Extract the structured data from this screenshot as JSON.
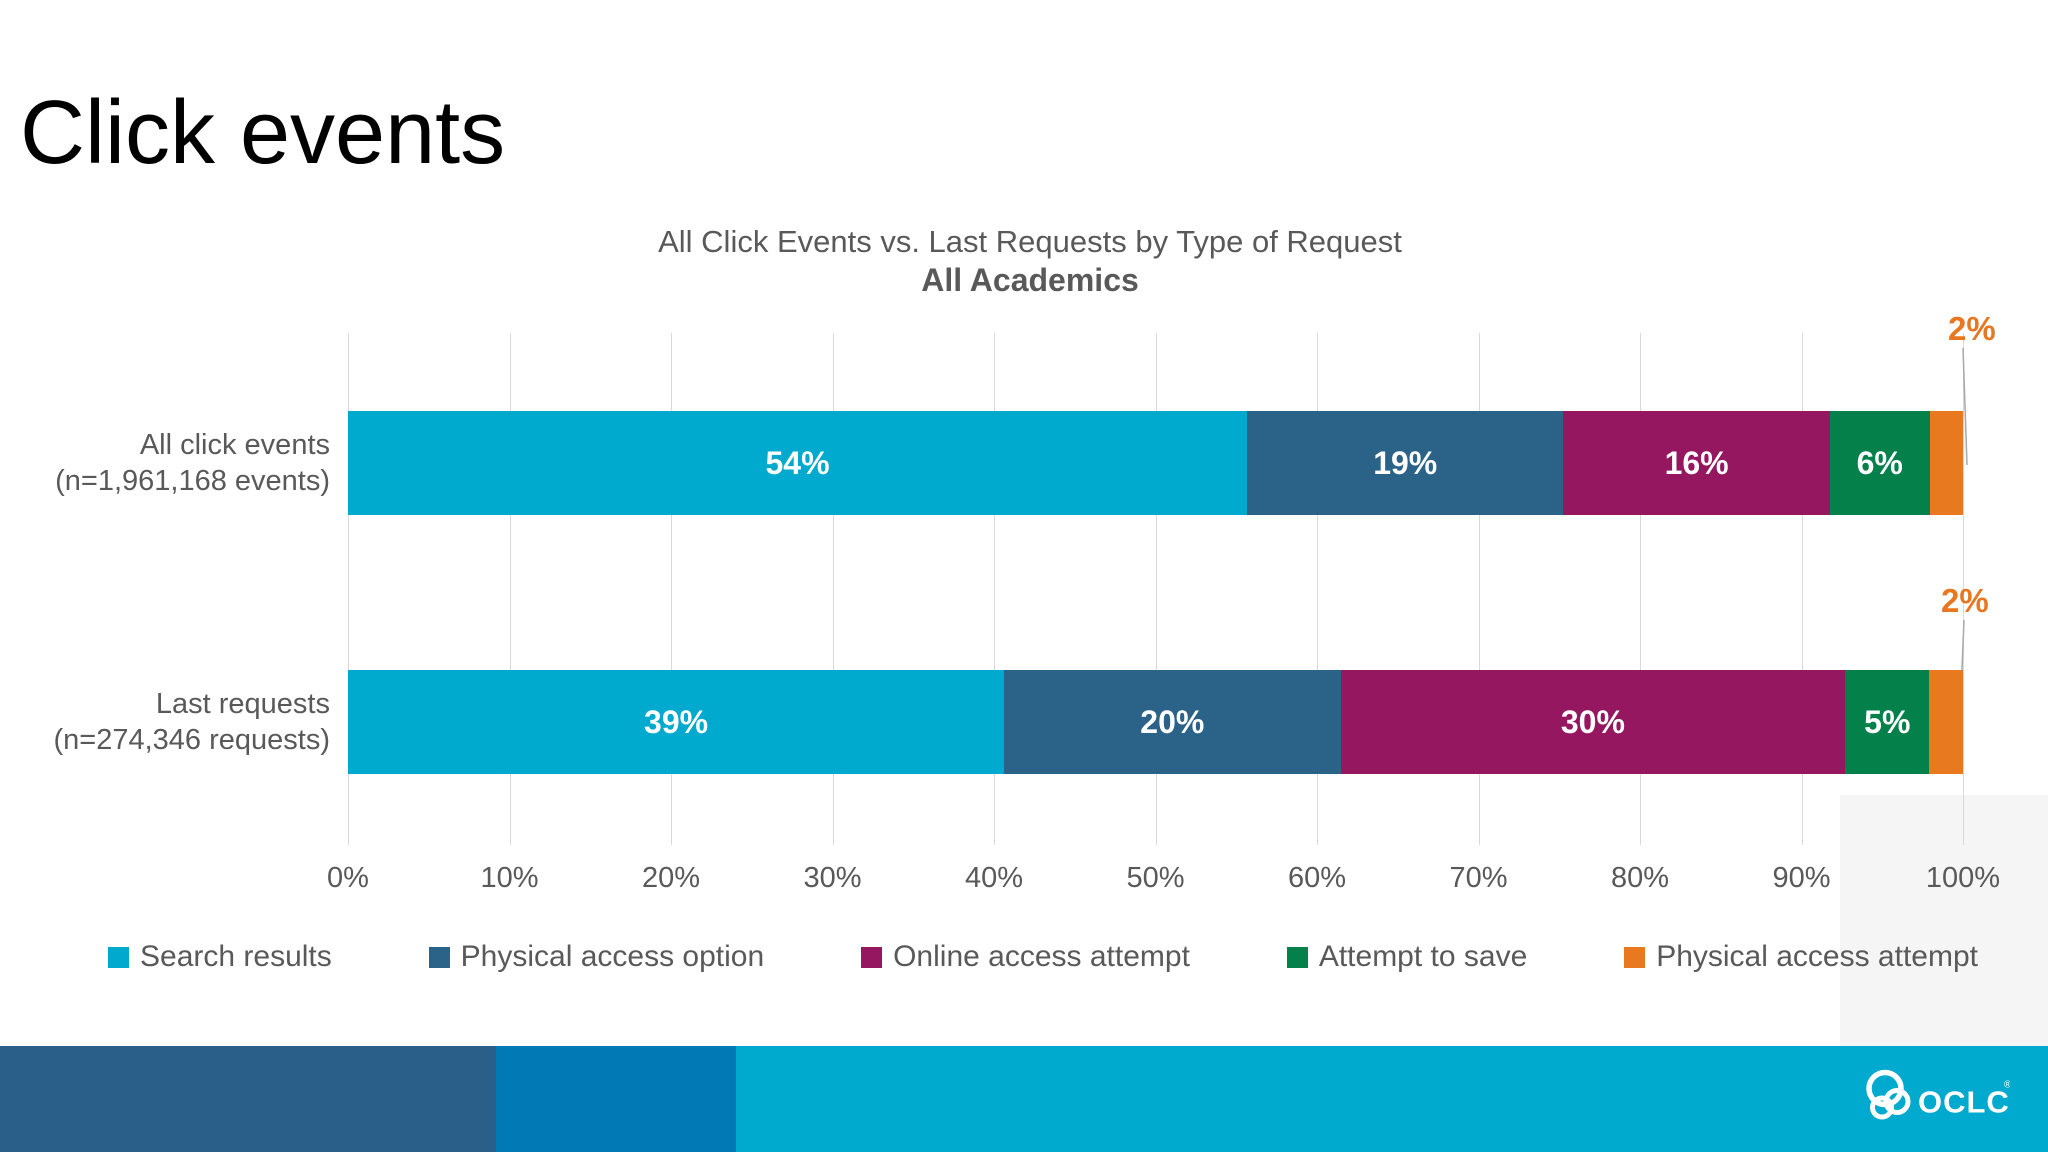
{
  "slide": {
    "title": "Click events"
  },
  "chart_data": {
    "type": "bar",
    "variant": "horizontal-stacked-100",
    "title": "All Click Events vs. Last Requests by Type of Request",
    "subtitle": "All Academics",
    "categories": [
      {
        "line1": "All click events",
        "line2": "(n=1,961,168 events)"
      },
      {
        "line1": "Last requests",
        "line2": "(n=274,346 requests)"
      }
    ],
    "series": [
      {
        "name": "Search results",
        "color": "#00A9CE",
        "values": [
          54,
          39
        ]
      },
      {
        "name": "Physical access option",
        "color": "#2B6288",
        "values": [
          19,
          20
        ]
      },
      {
        "name": "Online access attempt",
        "color": "#94175F",
        "values": [
          16,
          30
        ]
      },
      {
        "name": "Attempt to save",
        "color": "#04814B",
        "values": [
          6,
          5
        ]
      },
      {
        "name": "Physical access attempt",
        "color": "#E8791E",
        "values": [
          2,
          2
        ]
      }
    ],
    "value_suffix": "%",
    "min_inline_label_value": 5,
    "callouts": [
      {
        "text": "2%",
        "series": "Physical access attempt",
        "row": 0
      },
      {
        "text": "2%",
        "series": "Physical access attempt",
        "row": 1
      }
    ],
    "x_ticks": [
      "0%",
      "10%",
      "20%",
      "30%",
      "40%",
      "50%",
      "60%",
      "70%",
      "80%",
      "90%",
      "100%"
    ],
    "xlim": [
      0,
      100
    ],
    "grid": true,
    "legend_position": "bottom"
  },
  "footer": {
    "brand": "OCLC",
    "registered_mark": "®",
    "blocks": [
      {
        "color": "#2A5F8A"
      },
      {
        "color": "#0179B5"
      },
      {
        "color": "#00A9CE"
      }
    ]
  },
  "colors": {
    "title_text": "#000000",
    "chart_text": "#595959",
    "gridline": "#D9D9D9",
    "callout_text": "#E87722",
    "leader_line": "#A8A8A8"
  }
}
